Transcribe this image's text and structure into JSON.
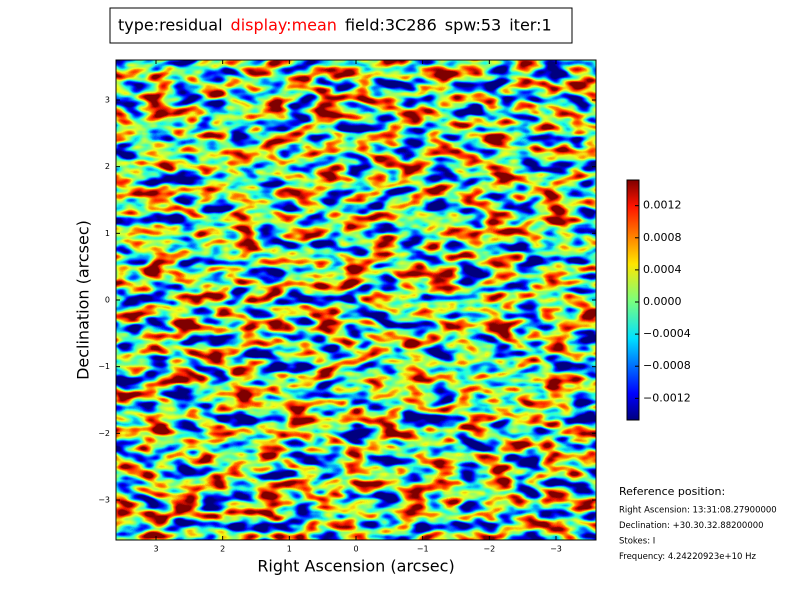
{
  "chart_data": {
    "type": "image",
    "title_parts": [
      {
        "text": "type:residual",
        "color": "#000000"
      },
      {
        "text": "display:mean",
        "color": "#ff0000"
      },
      {
        "text": "field:3C286",
        "color": "#000000"
      },
      {
        "text": "spw:53",
        "color": "#000000"
      },
      {
        "text": "iter:1",
        "color": "#000000"
      }
    ],
    "xlabel": "Right Ascension (arcsec)",
    "ylabel": "Declination (arcsec)",
    "xlim": [
      3.6,
      -3.6
    ],
    "xticks": [
      3,
      2,
      1,
      0,
      {
        "value": -1,
        "label": "−1"
      },
      {
        "value": -2,
        "label": "−2"
      },
      {
        "value": -3,
        "label": "−3"
      }
    ],
    "ylim": [
      -3.6,
      3.6
    ],
    "yticks": [
      {
        "value": -3,
        "label": "−3"
      },
      {
        "value": -2,
        "label": "−2"
      },
      {
        "value": -1,
        "label": "−1"
      },
      0,
      1,
      2,
      3
    ],
    "colorbar": {
      "lim": [
        -0.00147,
        0.00152
      ],
      "ticks": [
        {
          "value": -0.0012,
          "label": "−0.0012"
        },
        {
          "value": -0.0008,
          "label": "−0.0008"
        },
        {
          "value": -0.0004,
          "label": "−0.0004"
        },
        {
          "value": 0,
          "label": "0.0000"
        },
        {
          "value": 0.0004,
          "label": "0.0004"
        },
        {
          "value": 0.0008,
          "label": "0.0008"
        },
        {
          "value": 0.0012,
          "label": "0.0012"
        }
      ]
    },
    "reference": {
      "heading": "Reference position:",
      "lines": [
        "Right Ascension: 13:31:08.27900000",
        "Declination: +30.30.32.88200000",
        "Stokes: I",
        "Frequency: 4.24220923e+10 Hz"
      ]
    }
  }
}
